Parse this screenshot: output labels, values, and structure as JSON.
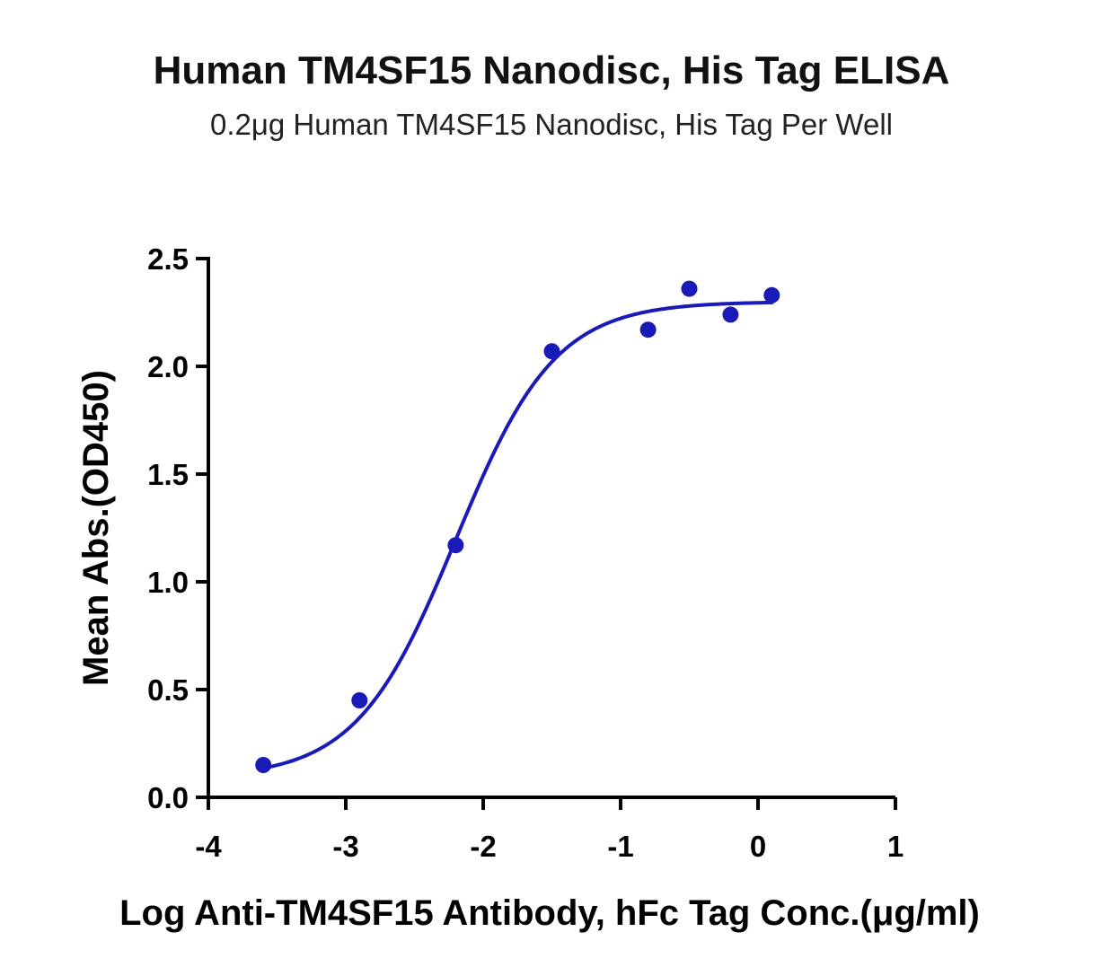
{
  "chart_data": {
    "type": "scatter",
    "title": "Human TM4SF15 Nanodisc, His Tag ELISA",
    "subtitle": "0.2μg Human TM4SF15 Nanodisc, His Tag Per Well",
    "xlabel": "Log Anti-TM4SF15 Antibody, hFc Tag Conc.(μg/ml)",
    "ylabel": "Mean Abs.(OD450)",
    "xlim": [
      -4,
      1
    ],
    "ylim": [
      0.0,
      2.5
    ],
    "x_ticks": [
      -4,
      -3,
      -2,
      -1,
      0,
      1
    ],
    "x_tick_labels": [
      "-4",
      "-3",
      "-2",
      "-1",
      "0",
      "1"
    ],
    "y_ticks": [
      0.0,
      0.5,
      1.0,
      1.5,
      2.0,
      2.5
    ],
    "y_tick_labels": [
      "0.0",
      "0.5",
      "1.0",
      "1.5",
      "2.0",
      "2.5"
    ],
    "grid": false,
    "series": [
      {
        "color": "#1a1ab8",
        "points": [
          {
            "x": -3.6,
            "y": 0.15
          },
          {
            "x": -2.9,
            "y": 0.45
          },
          {
            "x": -2.2,
            "y": 1.17
          },
          {
            "x": -1.5,
            "y": 2.07
          },
          {
            "x": -0.8,
            "y": 2.17
          },
          {
            "x": -0.5,
            "y": 2.36
          },
          {
            "x": -0.2,
            "y": 2.24
          },
          {
            "x": 0.1,
            "y": 2.33
          }
        ],
        "fit_curve": {
          "model": "four-parameter logistic",
          "bottom": 0.09,
          "top": 2.3,
          "log_ec50": -2.2,
          "hill_slope": 1.2,
          "x_range": [
            -3.6,
            0.1
          ]
        }
      }
    ]
  }
}
